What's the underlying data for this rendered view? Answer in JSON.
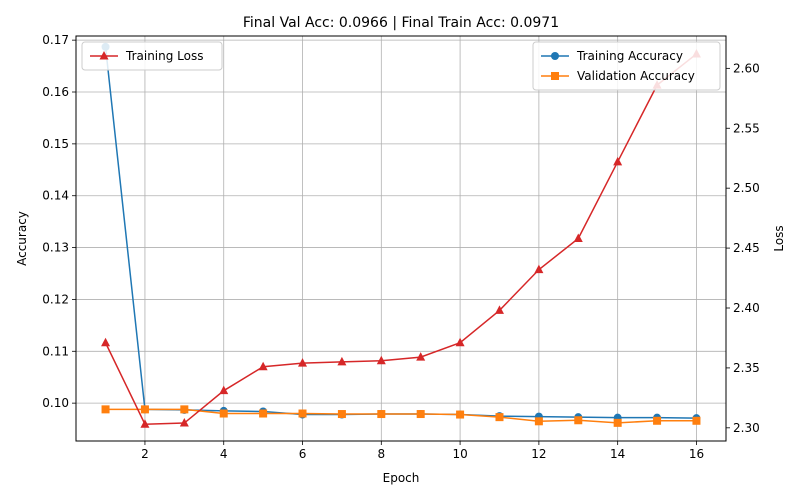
{
  "chart_data": {
    "type": "line",
    "title": "Final Val Acc: 0.0966 | Final Train Acc: 0.0971",
    "xlabel": "Epoch",
    "ylabel_left": "Accuracy",
    "ylabel_right": "Loss",
    "xlim": [
      0.25,
      16.75
    ],
    "ylim_left": [
      0.0927,
      0.1708
    ],
    "ylim_right": [
      2.289,
      2.627
    ],
    "x_ticks": [
      2,
      4,
      6,
      8,
      10,
      12,
      14,
      16
    ],
    "y_left_ticks": [
      "0.10",
      "0.11",
      "0.12",
      "0.13",
      "0.14",
      "0.15",
      "0.16",
      "0.17"
    ],
    "y_right_ticks": [
      "2.30",
      "2.35",
      "2.40",
      "2.45",
      "2.50",
      "2.55",
      "2.60"
    ],
    "grid": true,
    "x": [
      1,
      2,
      3,
      4,
      5,
      6,
      7,
      8,
      9,
      10,
      11,
      12,
      13,
      14,
      15,
      16
    ],
    "series": [
      {
        "name": "Training Accuracy",
        "axis": "left",
        "color": "#1f77b4",
        "marker": "circle",
        "values": [
          0.1687,
          0.0988,
          0.0987,
          0.0985,
          0.0984,
          0.0978,
          0.0978,
          0.0979,
          0.0979,
          0.0978,
          0.0975,
          0.0974,
          0.0973,
          0.0972,
          0.0972,
          0.0971
        ]
      },
      {
        "name": "Validation Accuracy",
        "axis": "left",
        "color": "#ff7f0e",
        "marker": "square",
        "values": [
          0.0988,
          0.0988,
          0.0988,
          0.098,
          0.098,
          0.098,
          0.0979,
          0.0979,
          0.0979,
          0.0978,
          0.0973,
          0.0965,
          0.0967,
          0.0962,
          0.0966,
          0.0966
        ]
      },
      {
        "name": "Training Loss",
        "axis": "right",
        "color": "#d62728",
        "marker": "triangle",
        "values": [
          2.371,
          2.303,
          2.304,
          2.331,
          2.351,
          2.354,
          2.355,
          2.356,
          2.359,
          2.371,
          2.398,
          2.432,
          2.458,
          2.522,
          2.586,
          2.612
        ]
      }
    ],
    "legends": {
      "left_axis_legend": {
        "placement": "upper-right",
        "entries": [
          "Training Accuracy",
          "Validation Accuracy"
        ]
      },
      "right_axis_legend": {
        "placement": "upper-left",
        "entries": [
          "Training Loss"
        ]
      }
    }
  }
}
